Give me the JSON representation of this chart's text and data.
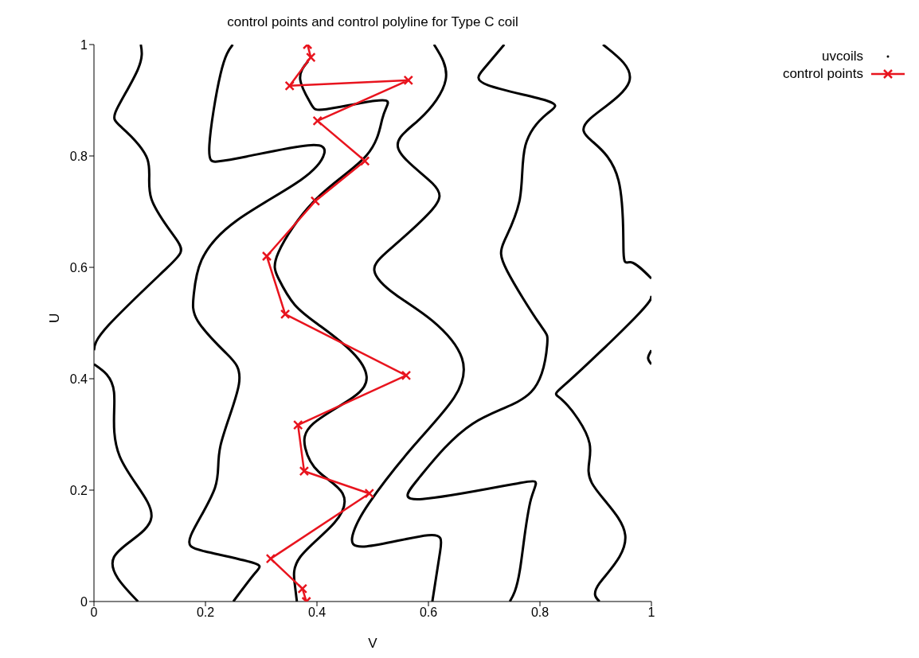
{
  "chart_data": {
    "type": "line",
    "title": "control points and control polyline for Type C coil",
    "xlabel": "V",
    "ylabel": "U",
    "xlim": [
      0,
      1
    ],
    "ylim": [
      0,
      1
    ],
    "xticks": [
      0,
      0.2,
      0.4,
      0.6,
      0.8,
      1
    ],
    "yticks": [
      0,
      0.2,
      0.4,
      0.6,
      0.8,
      1
    ],
    "legend": "top right",
    "series": [
      {
        "name": "uvcoils",
        "color": "#000000",
        "marker": "none",
        "x": [
          0.084,
          0.079,
          0.041,
          0.05,
          0.096,
          0.103,
          0.15,
          0.131,
          0.027,
          0,
          null,
          0,
          0.036,
          0.046,
          0.103,
          0.036,
          0.079,
          null,
          0.249,
          0.227,
          0.207,
          0.221,
          0.274,
          0.384,
          0.413,
          0.37,
          0.256,
          0.193,
          0.179,
          0.186,
          0.236,
          0.26,
          0.227,
          0.217,
          0.174,
          0.199,
          0.284,
          0.289,
          0.25,
          null,
          null,
          0.384,
          0.37,
          0.389,
          0.417,
          0.503,
          0.527,
          0.517,
          0.489,
          0.399,
          0.331,
          0.331,
          0.36,
          0.407,
          0.464,
          0.489,
          0.464,
          0.393,
          0.379,
          0.403,
          0.446,
          0.431,
          0.37,
          0.36,
          0.364,
          null,
          0.61,
          0.631,
          0.584,
          0.546,
          0.607,
          0.607,
          0.536,
          0.503,
          0.541,
          0.607,
          0.66,
          0.646,
          0.574,
          0.493,
          0.464,
          0.489,
          0.599,
          0.621,
          0.607,
          null,
          0.736,
          0.699,
          0.707,
          0.813,
          0.813,
          0.774,
          0.764,
          0.736,
          0.741,
          0.799,
          0.813,
          0.784,
          0.679,
          0.584,
          0.589,
          0.764,
          0.784,
          0.764,
          0.746,
          null,
          0.913,
          0.96,
          0.889,
          0.893,
          0.941,
          0.95,
          0.964,
          1,
          null,
          1,
          0.97,
          0.85,
          0.841,
          0.889,
          0.893,
          0.953,
          0.907,
          0.907,
          null,
          1,
          0.994,
          1
        ],
        "values": [
          1,
          0.956,
          0.884,
          0.851,
          0.794,
          0.723,
          0.647,
          0.599,
          0.497,
          0.451,
          null,
          0.426,
          0.376,
          0.261,
          0.151,
          0.08,
          0,
          null,
          1,
          0.947,
          0.819,
          0.79,
          0.799,
          0.819,
          0.804,
          0.756,
          0.684,
          0.613,
          0.551,
          0.504,
          0.447,
          0.39,
          0.28,
          0.204,
          0.119,
          0.09,
          0.07,
          0.051,
          0,
          null,
          null,
          0.97,
          0.937,
          0.894,
          0.884,
          0.899,
          0.894,
          0.866,
          0.801,
          0.723,
          0.627,
          0.58,
          0.533,
          0.494,
          0.447,
          0.404,
          0.366,
          0.319,
          0.276,
          0.233,
          0.194,
          0.141,
          0.08,
          0.033,
          0,
          null,
          1,
          0.937,
          0.866,
          0.813,
          0.751,
          0.704,
          0.637,
          0.594,
          0.551,
          0.504,
          0.437,
          0.366,
          0.28,
          0.176,
          0.119,
          0.099,
          0.119,
          0.09,
          0,
          null,
          1,
          0.956,
          0.927,
          0.899,
          0.876,
          0.819,
          0.723,
          0.647,
          0.594,
          0.499,
          0.461,
          0.376,
          0.319,
          0.223,
          0.184,
          0.213,
          0.184,
          0.056,
          0,
          null,
          1,
          0.933,
          0.866,
          0.827,
          0.756,
          0.627,
          0.609,
          0.58,
          null,
          0.549,
          0.509,
          0.394,
          0.361,
          0.284,
          0.213,
          0.119,
          0.033,
          0,
          null,
          0.451,
          0.437,
          0.426
        ]
      },
      {
        "name": "control points",
        "color": "#e8141e",
        "marker": "cross",
        "x": [
          0.383,
          0.389,
          0.351,
          0.564,
          0.401,
          0.486,
          0.397,
          0.31,
          0.343,
          0.56,
          0.366,
          0.377,
          0.494,
          0.317,
          0.374,
          0.381
        ],
        "values": [
          1,
          0.977,
          0.926,
          0.936,
          0.863,
          0.791,
          0.719,
          0.62,
          0.516,
          0.406,
          0.317,
          0.234,
          0.194,
          0.077,
          0.023,
          0
        ]
      }
    ]
  }
}
